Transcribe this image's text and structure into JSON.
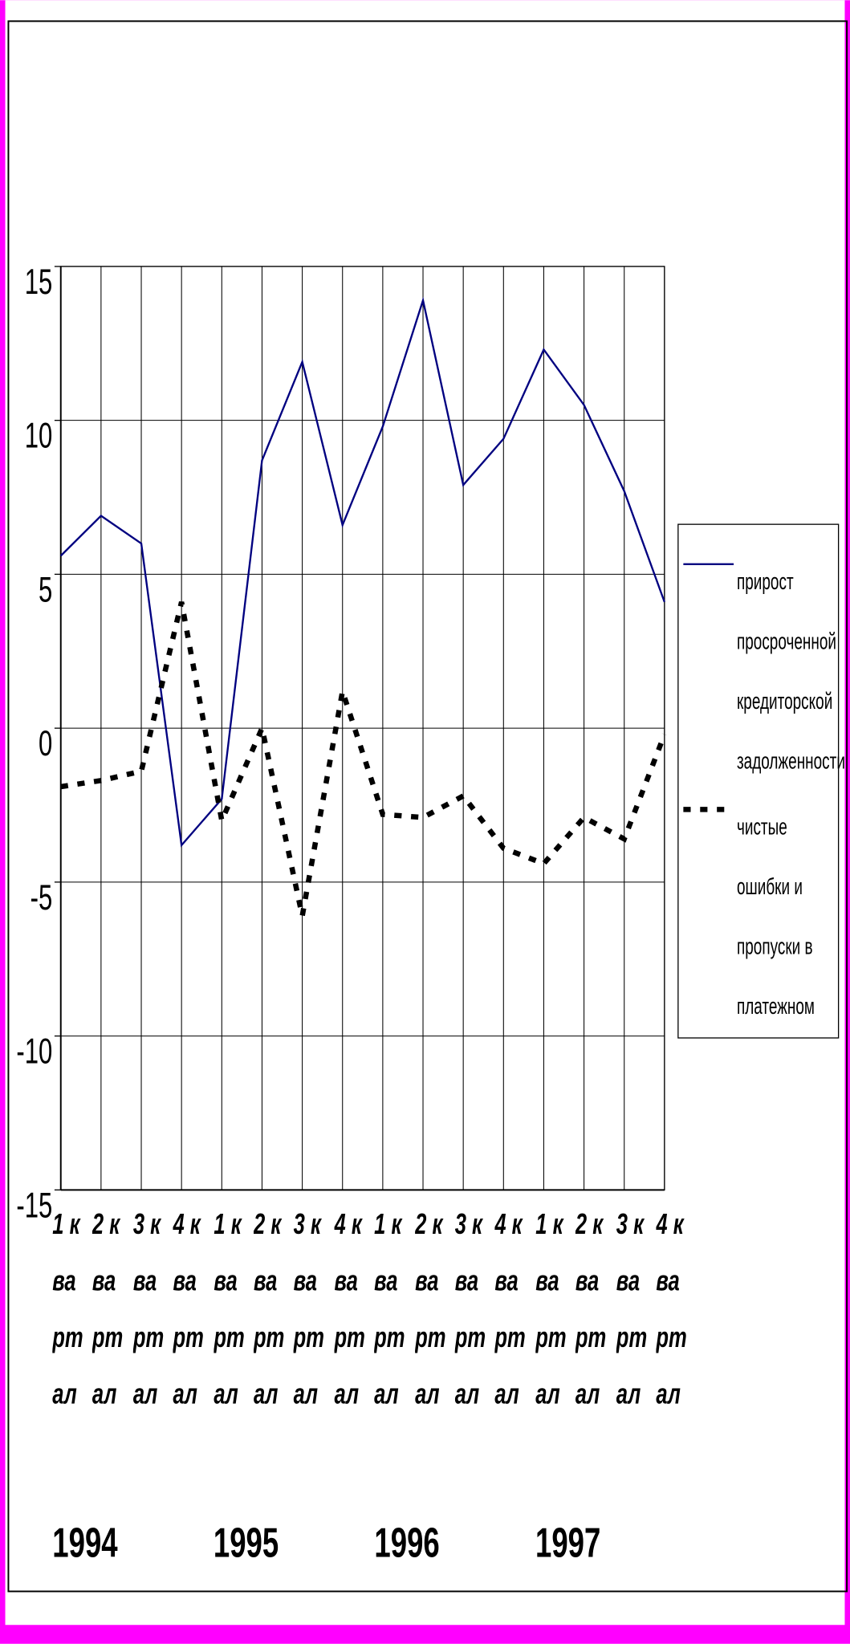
{
  "chart_data": {
    "type": "line",
    "categories": [
      "1 квартал",
      "2 квартал",
      "3 квартал",
      "4 квартал",
      "1 квартал",
      "2 квартал",
      "3 квартал",
      "4 квартал",
      "1 квартал",
      "2 квартал",
      "3 квартал",
      "4 квартал",
      "1 квартал",
      "2 квартал",
      "3 квартал",
      "4 квартал"
    ],
    "year_labels": [
      "1994",
      "1995",
      "1996",
      "1997"
    ],
    "series": [
      {
        "name": "прирост просроченной кредиторской задолженности",
        "color": "#000080",
        "line_style": "solid",
        "values": [
          5.6,
          6.9,
          6.0,
          -3.8,
          -2.3,
          8.7,
          11.9,
          6.6,
          9.8,
          13.9,
          7.9,
          9.4,
          12.3,
          10.5,
          7.7,
          4.1
        ]
      },
      {
        "name": "чистые ошибки и пропуски в платежном балансе",
        "color": "#000000",
        "line_style": "dotted",
        "values": [
          -1.9,
          -1.7,
          -1.4,
          4.1,
          -3.0,
          0,
          -6.1,
          1.2,
          -2.8,
          -2.9,
          -2.2,
          -3.9,
          -4.4,
          -2.9,
          -3.6,
          -0.2
        ]
      }
    ],
    "ylim": [
      -15,
      15
    ],
    "yticks": [
      -15,
      -10,
      -5,
      0,
      5,
      10,
      15
    ],
    "grid": true
  }
}
